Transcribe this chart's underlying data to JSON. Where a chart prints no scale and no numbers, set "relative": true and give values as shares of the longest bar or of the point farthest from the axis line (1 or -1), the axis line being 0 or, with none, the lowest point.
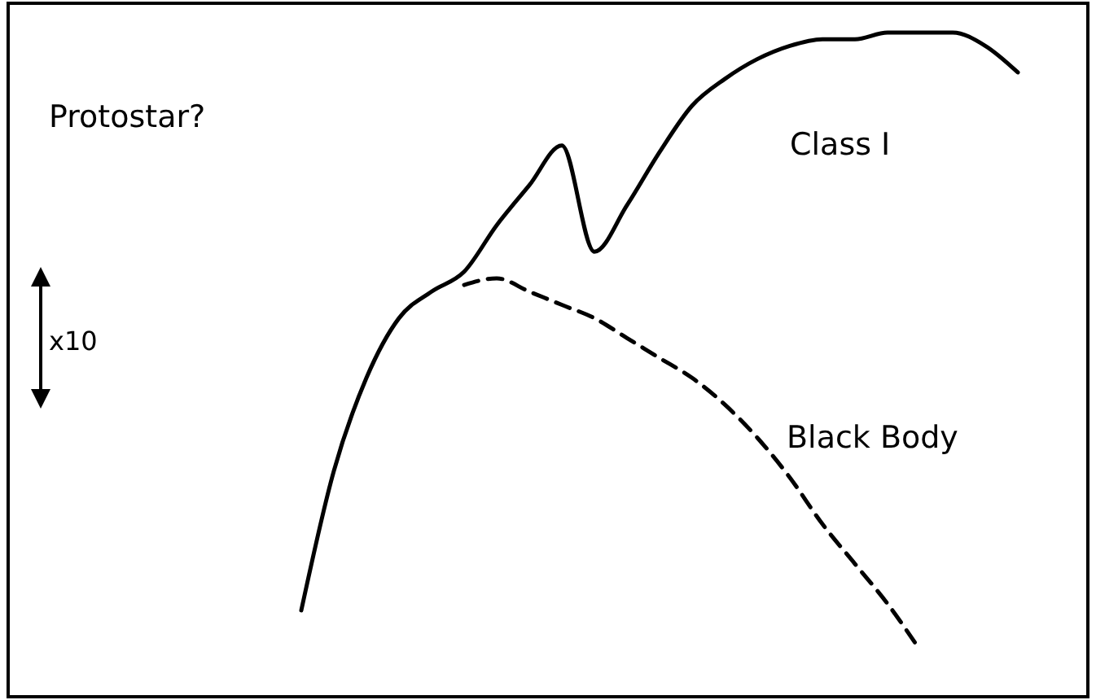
{
  "chart_data": {
    "type": "line",
    "relative": true,
    "legend": false,
    "grid": false,
    "categories": [
      null,
      null,
      null,
      null,
      null,
      null,
      null,
      null,
      null,
      null,
      null,
      null,
      null,
      null,
      null,
      null,
      null,
      null,
      null,
      null,
      null,
      null,
      null,
      null,
      null,
      null,
      null,
      null,
      null,
      null,
      null,
      null,
      null,
      null
    ],
    "series": [
      {
        "name": "Class I",
        "color": "#000000",
        "line_style": "solid",
        "values": [
          null,
          null,
          null,
          null,
          null,
          null,
          null,
          null,
          null,
          0.13,
          0.34,
          0.48,
          0.57,
          0.61,
          0.64,
          0.71,
          0.77,
          0.83,
          0.67,
          0.74,
          0.82,
          0.89,
          0.93,
          0.96,
          0.98,
          0.99,
          0.99,
          1.0,
          1.0,
          1.0,
          0.98,
          0.94,
          null,
          null
        ]
      },
      {
        "name": "Black Body",
        "color": "#000000",
        "line_style": "dashed",
        "values": [
          null,
          null,
          null,
          null,
          null,
          null,
          null,
          null,
          null,
          null,
          null,
          null,
          null,
          null,
          0.62,
          0.63,
          0.61,
          0.59,
          0.57,
          0.54,
          0.51,
          0.48,
          0.44,
          0.39,
          0.33,
          0.26,
          0.2,
          0.14,
          0.07,
          null,
          null,
          null,
          null,
          null
        ]
      }
    ],
    "annotations": [
      "Protostar?",
      "x10"
    ]
  }
}
